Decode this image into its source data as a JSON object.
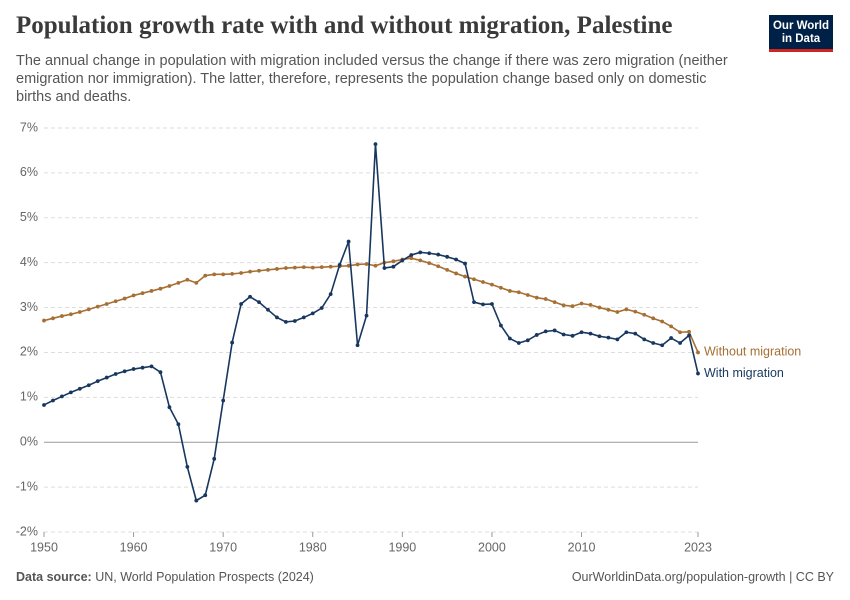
{
  "chart_data": {
    "type": "line",
    "title": "Population growth rate with and without migration, Palestine",
    "subtitle": "The annual change in population with migration included versus the change if there was zero migration (neither emigration nor immigration). The latter, therefore, represents the population change based only on domestic births and deaths.",
    "logo": {
      "line1": "Our World",
      "line2": "in Data"
    },
    "source_label": "Data source:",
    "source": "UN, World Population Prospects (2024)",
    "credit": "OurWorldinData.org/population-growth | CC BY",
    "x": [
      1950,
      1951,
      1952,
      1953,
      1954,
      1955,
      1956,
      1957,
      1958,
      1959,
      1960,
      1961,
      1962,
      1963,
      1964,
      1965,
      1966,
      1967,
      1968,
      1969,
      1970,
      1971,
      1972,
      1973,
      1974,
      1975,
      1976,
      1977,
      1978,
      1979,
      1980,
      1981,
      1982,
      1983,
      1984,
      1985,
      1986,
      1987,
      1988,
      1989,
      1990,
      1991,
      1992,
      1993,
      1994,
      1995,
      1996,
      1997,
      1998,
      1999,
      2000,
      2001,
      2002,
      2003,
      2004,
      2005,
      2006,
      2007,
      2008,
      2009,
      2010,
      2011,
      2012,
      2013,
      2014,
      2015,
      2016,
      2017,
      2018,
      2019,
      2020,
      2021,
      2022,
      2023
    ],
    "series": [
      {
        "name": "Without migration",
        "color": "#a66f33",
        "values": [
          2.71,
          2.76,
          2.81,
          2.85,
          2.9,
          2.96,
          3.02,
          3.08,
          3.14,
          3.2,
          3.27,
          3.32,
          3.37,
          3.42,
          3.48,
          3.55,
          3.62,
          3.55,
          3.71,
          3.74,
          3.74,
          3.75,
          3.77,
          3.8,
          3.82,
          3.84,
          3.86,
          3.88,
          3.89,
          3.9,
          3.89,
          3.9,
          3.91,
          3.92,
          3.93,
          3.96,
          3.97,
          3.93,
          4.0,
          4.03,
          4.07,
          4.1,
          4.05,
          3.99,
          3.92,
          3.84,
          3.76,
          3.69,
          3.63,
          3.57,
          3.51,
          3.44,
          3.37,
          3.34,
          3.28,
          3.22,
          3.19,
          3.12,
          3.05,
          3.03,
          3.09,
          3.06,
          3.0,
          2.95,
          2.9,
          2.96,
          2.91,
          2.84,
          2.76,
          2.69,
          2.58,
          2.45,
          2.46,
          2.0
        ]
      },
      {
        "name": "With migration",
        "color": "#18375f",
        "values": [
          0.83,
          0.93,
          1.02,
          1.11,
          1.19,
          1.27,
          1.36,
          1.44,
          1.52,
          1.58,
          1.63,
          1.66,
          1.69,
          1.56,
          0.78,
          0.4,
          -0.55,
          -1.3,
          -1.18,
          -0.37,
          0.93,
          2.22,
          3.08,
          3.24,
          3.12,
          2.95,
          2.78,
          2.68,
          2.7,
          2.78,
          2.87,
          2.99,
          3.3,
          3.95,
          4.47,
          2.16,
          2.82,
          6.64,
          3.88,
          3.91,
          4.05,
          4.17,
          4.23,
          4.21,
          4.18,
          4.13,
          4.07,
          3.98,
          3.12,
          3.07,
          3.08,
          2.6,
          2.31,
          2.21,
          2.27,
          2.39,
          2.47,
          2.49,
          2.4,
          2.37,
          2.45,
          2.42,
          2.36,
          2.33,
          2.29,
          2.45,
          2.42,
          2.29,
          2.21,
          2.16,
          2.32,
          2.21,
          2.38,
          1.53
        ]
      }
    ],
    "xlim": [
      1950,
      2023
    ],
    "xticks": [
      1950,
      1960,
      1970,
      1980,
      1990,
      2000,
      2010,
      2023
    ],
    "ylim": [
      -2,
      7
    ],
    "yticks": [
      {
        "value": -2,
        "label": "-2%"
      },
      {
        "value": -1,
        "label": "-1%"
      },
      {
        "value": 0,
        "label": "0%"
      },
      {
        "value": 1,
        "label": "1%"
      },
      {
        "value": 2,
        "label": "2%"
      },
      {
        "value": 3,
        "label": "3%"
      },
      {
        "value": 4,
        "label": "4%"
      },
      {
        "value": 5,
        "label": "5%"
      },
      {
        "value": 6,
        "label": "6%"
      },
      {
        "value": 7,
        "label": "7%"
      }
    ],
    "grid": true
  }
}
